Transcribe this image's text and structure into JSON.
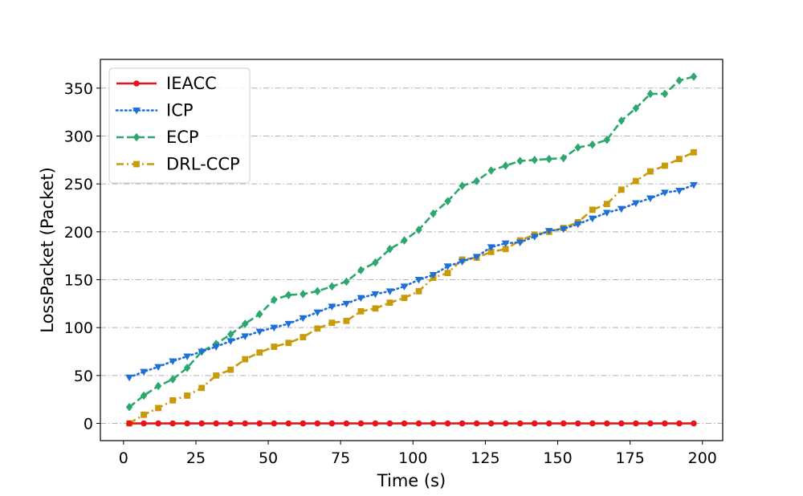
{
  "chart_data": {
    "type": "line",
    "xlabel": "Time (s)",
    "ylabel": "LossPacket (Packet)",
    "xlim": [
      -8,
      207
    ],
    "ylim": [
      -18,
      380
    ],
    "xticks": [
      0,
      25,
      50,
      75,
      100,
      125,
      150,
      175,
      200
    ],
    "yticks": [
      0,
      50,
      100,
      150,
      200,
      250,
      300,
      350
    ],
    "grid": "horizontal dash-dot",
    "legend_position": "top-left",
    "x": [
      2,
      7,
      12,
      17,
      22,
      27,
      32,
      37,
      42,
      47,
      52,
      57,
      62,
      67,
      72,
      77,
      82,
      87,
      92,
      97,
      102,
      107,
      112,
      117,
      122,
      127,
      132,
      137,
      142,
      147,
      152,
      157,
      162,
      167,
      172,
      177,
      182,
      187,
      192,
      197
    ],
    "series": [
      {
        "name": "IEACC",
        "color": "#e8141c",
        "linestyle": "solid",
        "marker": "circle",
        "values": [
          0,
          0,
          0,
          0,
          0,
          0,
          0,
          0,
          0,
          0,
          0,
          0,
          0,
          0,
          0,
          0,
          0,
          0,
          0,
          0,
          0,
          0,
          0,
          0,
          0,
          0,
          0,
          0,
          0,
          0,
          0,
          0,
          0,
          0,
          0,
          0,
          0,
          0,
          0,
          0
        ]
      },
      {
        "name": "ICP",
        "color": "#1f6fd8",
        "linestyle": "dotted",
        "marker": "triangle-down",
        "values": [
          48,
          54,
          59,
          65,
          70,
          75,
          80,
          86,
          91,
          96,
          100,
          104,
          110,
          116,
          122,
          125,
          131,
          135,
          138,
          143,
          150,
          155,
          164,
          169,
          174,
          184,
          188,
          189,
          195,
          201,
          203,
          208,
          214,
          220,
          224,
          230,
          235,
          241,
          243,
          249
        ]
      },
      {
        "name": "ECP",
        "color": "#2ca86e",
        "linestyle": "dashed",
        "marker": "diamond",
        "values": [
          17,
          29,
          39,
          46,
          58,
          75,
          83,
          93,
          104,
          114,
          129,
          134,
          135,
          138,
          143,
          148,
          160,
          168,
          182,
          191,
          202,
          219,
          232,
          248,
          253,
          264,
          269,
          274,
          275,
          276,
          277,
          288,
          291,
          296,
          316,
          329,
          344,
          344,
          358,
          362
        ]
      },
      {
        "name": "DRL-CCP",
        "color": "#c99a0a",
        "linestyle": "dashdot",
        "marker": "square",
        "values": [
          0,
          9,
          16,
          24,
          29,
          37,
          50,
          56,
          67,
          74,
          80,
          84,
          90,
          99,
          105,
          107,
          117,
          120,
          126,
          131,
          138,
          152,
          157,
          171,
          173,
          179,
          182,
          191,
          197,
          200,
          204,
          210,
          223,
          229,
          244,
          253,
          263,
          269,
          276,
          283
        ]
      }
    ]
  }
}
